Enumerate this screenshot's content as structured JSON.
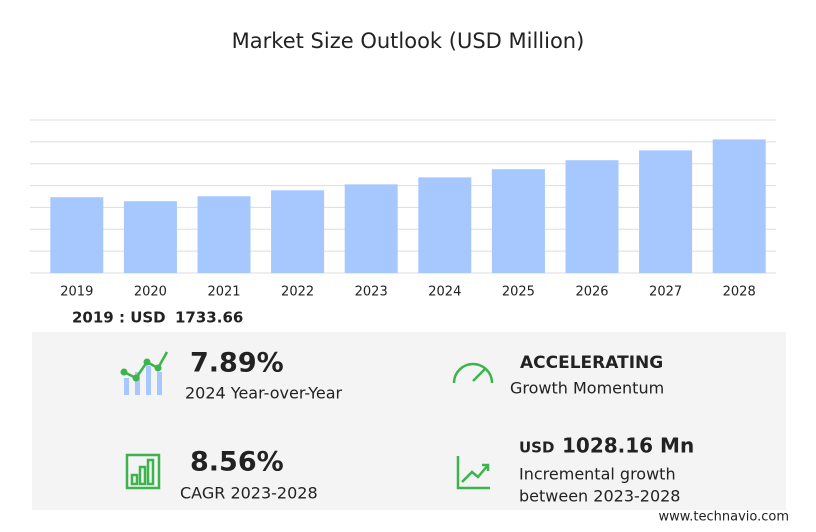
{
  "chart_data": {
    "type": "bar",
    "title": "Market Size Outlook (USD Million)",
    "categories": [
      "2019",
      "2020",
      "2021",
      "2022",
      "2023",
      "2024",
      "2025",
      "2026",
      "2027",
      "2028"
    ],
    "values": [
      1733.66,
      1642,
      1756,
      1892,
      2028,
      2188,
      2374,
      2580,
      2805,
      3056
    ],
    "color": "#a6c8ff",
    "ylim": [
      0,
      3500
    ],
    "yticks": [
      0,
      500,
      1000,
      1500,
      2000,
      2500,
      3000,
      3500
    ],
    "grid": true,
    "ytick_labels": false
  },
  "base_year": {
    "label": "2019 : USD",
    "value": 1733.66
  },
  "highlights": [
    {
      "value": "7.89%",
      "caption": "2024 Year-over-Year"
    },
    {
      "value": "ACCELERATING",
      "caption": "Growth Momentum"
    },
    {
      "value": "8.56%",
      "caption": "CAGR 2023-2028"
    },
    {
      "unit": "USD",
      "value": "1028.16 Mn",
      "caption": "Incremental growth",
      "caption2": "between 2023-2028"
    }
  ],
  "footer": "www.technavio.com"
}
